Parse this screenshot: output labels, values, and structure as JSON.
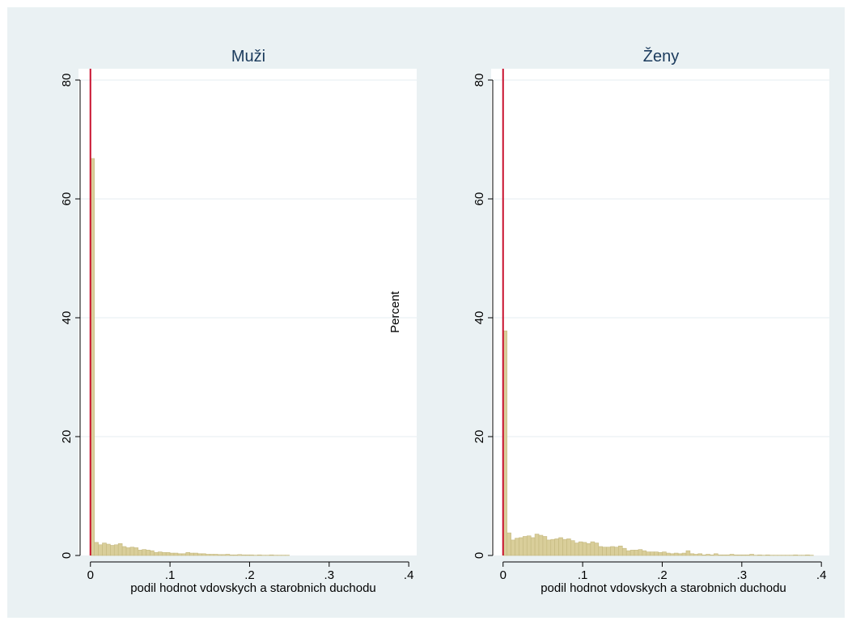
{
  "chart_data": [
    {
      "type": "bar",
      "title": "Muži",
      "xlabel": "podil hodnot vdovskych a starobnich duchodu",
      "ylabel": "Percent",
      "xlim": [
        -0.015,
        0.41
      ],
      "ylim": [
        0,
        80
      ],
      "xticks": [
        0,
        0.1,
        0.2,
        0.3,
        0.4
      ],
      "xtick_labels": [
        "0",
        ".1",
        ".2",
        ".3",
        ".4"
      ],
      "yticks": [
        0,
        20,
        40,
        60,
        80
      ],
      "ytick_labels": [
        "0",
        "20",
        "40",
        "60",
        "80"
      ],
      "grid": true,
      "bin_width": 0.005,
      "bin_start": 0,
      "values": [
        66.8,
        2.2,
        1.8,
        2.1,
        1.9,
        1.7,
        1.8,
        2.0,
        1.5,
        1.3,
        1.4,
        1.3,
        0.9,
        1.0,
        0.9,
        0.8,
        0.5,
        0.6,
        0.5,
        0.5,
        0.4,
        0.4,
        0.3,
        0.3,
        0.5,
        0.4,
        0.4,
        0.3,
        0.3,
        0.2,
        0.2,
        0.2,
        0.15,
        0.15,
        0.2,
        0.1,
        0.1,
        0.15,
        0.1,
        0.1,
        0.1,
        0.05,
        0.1,
        0.05,
        0.05,
        0.1,
        0.05,
        0.05,
        0.05,
        0.05
      ],
      "vline_x": 0,
      "bar_color": "#d9ce9a",
      "bar_edge": "#c4b87e",
      "vline_color": "#c8102e"
    },
    {
      "type": "bar",
      "title": "Ženy",
      "xlabel": "podil hodnot vdovskych a starobnich duchodu",
      "ylabel": "Percent",
      "xlim": [
        -0.015,
        0.41
      ],
      "ylim": [
        0,
        80
      ],
      "xticks": [
        0,
        0.1,
        0.2,
        0.3,
        0.4
      ],
      "xtick_labels": [
        "0",
        ".1",
        ".2",
        ".3",
        ".4"
      ],
      "yticks": [
        0,
        20,
        40,
        60,
        80
      ],
      "ytick_labels": [
        "0",
        "20",
        "40",
        "60",
        "80"
      ],
      "grid": true,
      "bin_width": 0.005,
      "bin_start": 0,
      "values": [
        37.8,
        3.8,
        2.6,
        2.9,
        3.0,
        3.2,
        3.3,
        3.0,
        3.6,
        3.4,
        3.2,
        2.6,
        2.7,
        2.8,
        3.0,
        2.7,
        2.8,
        2.5,
        2.1,
        2.3,
        2.2,
        2.0,
        2.3,
        2.1,
        1.5,
        1.4,
        1.4,
        1.5,
        1.4,
        1.6,
        1.2,
        0.8,
        0.9,
        0.9,
        1.0,
        0.8,
        0.6,
        0.6,
        0.6,
        0.5,
        0.6,
        0.4,
        0.3,
        0.4,
        0.3,
        0.4,
        0.8,
        0.3,
        0.2,
        0.3,
        0.1,
        0.2,
        0.1,
        0.3,
        0.1,
        0.1,
        0.1,
        0.2,
        0.1,
        0.1,
        0.1,
        0.1,
        0.2,
        0.05,
        0.1,
        0.05,
        0.1,
        0.05,
        0.05,
        0.05,
        0.05,
        0.05,
        0.05,
        0.1,
        0.05,
        0.05,
        0.1,
        0.05
      ],
      "vline_x": 0,
      "bar_color": "#d9ce9a",
      "bar_edge": "#c4b87e",
      "vline_color": "#c8102e"
    }
  ],
  "colors": {
    "outer_background": "#eaf1f3",
    "plot_background": "#ffffff",
    "grid": "#eaf1f3",
    "title": "#1a3a5c",
    "text": "#000000"
  },
  "shared_ylabel": "Percent"
}
